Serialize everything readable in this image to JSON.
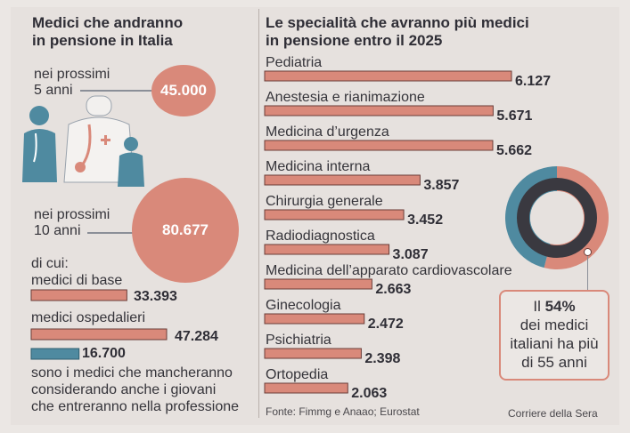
{
  "left": {
    "title_line1": "Medici che andranno",
    "title_line2": "in pensione in Italia",
    "group1": {
      "label_line1": "nei prossimi",
      "label_line2": "5 anni",
      "value": "45.000"
    },
    "group2": {
      "label_line1": "nei prossimi",
      "label_line2": "10 anni",
      "value": "80.677"
    },
    "breakdown_header": "di cui:",
    "breakdown": [
      {
        "label": "medici di base",
        "value": "33.393"
      },
      {
        "label": "medici ospedalieri",
        "value": "47.284"
      },
      {
        "label": "",
        "value": "16.700"
      }
    ],
    "note_line1": "sono i medici che mancheranno",
    "note_line2": "considerando anche i giovani",
    "note_line3": "che entreranno nella professione"
  },
  "right": {
    "title_line1": "Le specialità che avranno più medici",
    "title_line2": "in pensione entro il 2025",
    "callout_prefix": "Il ",
    "callout_pct": "54%",
    "callout_line2": "dei medici",
    "callout_line3": "italiani ha più",
    "callout_line4": "di 55 anni"
  },
  "footer": {
    "source": "Fonte: Fimmg e Anaao; Eurostat",
    "publisher": "Corriere della Sera"
  },
  "colors": {
    "bar": "#d9897a",
    "bar_border": "#6b3d38",
    "teal": "#4f8aa0",
    "dark": "#3a3940",
    "background": "#e6e1de"
  },
  "icons": [
    "doctors-illustration-icon"
  ],
  "chart_data": [
    {
      "type": "bar",
      "title": "Le specialità che avranno più medici in pensione entro il 2025",
      "categories": [
        "Pediatria",
        "Anestesia e rianimazione",
        "Medicina d’urgenza",
        "Medicina interna",
        "Chirurgia generale",
        "Radiodiagnostica",
        "Medicina dell’apparato cardiovascolare",
        "Ginecologia",
        "Psichiatria",
        "Ortopedia"
      ],
      "values": [
        6127,
        5671,
        5662,
        3857,
        3452,
        3087,
        2663,
        2472,
        2398,
        2063
      ],
      "value_labels": [
        "6.127",
        "5.671",
        "5.662",
        "3.857",
        "3.452",
        "3.087",
        "2.663",
        "2.472",
        "2.398",
        "2.063"
      ]
    },
    {
      "type": "bar",
      "title": "Medici che andranno in pensione in Italia",
      "categories": [
        "medici di base",
        "medici ospedalieri",
        ""
      ],
      "values": [
        33393,
        47284,
        16700
      ]
    },
    {
      "type": "pie",
      "categories": [
        "più di 55 anni",
        "altri"
      ],
      "values": [
        54,
        46
      ]
    }
  ]
}
